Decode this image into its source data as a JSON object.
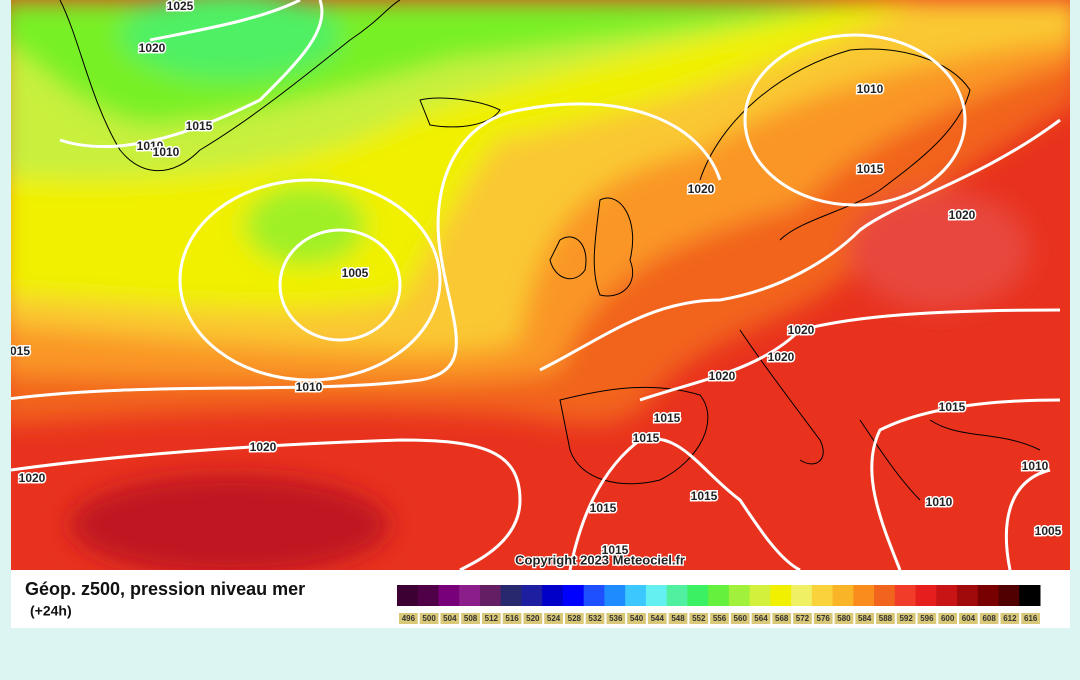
{
  "map": {
    "isobar_labels": [
      "1025",
      "1020",
      "1015",
      "1010",
      "1010",
      "1005",
      "1010",
      "1020",
      "1020",
      "015",
      "1010",
      "1015",
      "1020",
      "1020",
      "1020",
      "1020",
      "1020",
      "1015",
      "1015",
      "1015",
      "1015",
      "1015",
      "1010",
      "1010",
      "1005",
      "1015"
    ],
    "copyright": "Copyright 2023 Meteociel.fr"
  },
  "legend": {
    "title": "Géop. z500, pression niveau mer",
    "subtitle": "(+24h)",
    "items": [
      {
        "label": "496",
        "color": "#3c0032"
      },
      {
        "label": "500",
        "color": "#500046"
      },
      {
        "label": "504",
        "color": "#780078"
      },
      {
        "label": "508",
        "color": "#8c1e8c"
      },
      {
        "label": "512",
        "color": "#641e64"
      },
      {
        "label": "516",
        "color": "#28286e"
      },
      {
        "label": "520",
        "color": "#1e1ea0"
      },
      {
        "label": "524",
        "color": "#0000c8"
      },
      {
        "label": "528",
        "color": "#0000ff"
      },
      {
        "label": "532",
        "color": "#1e50ff"
      },
      {
        "label": "536",
        "color": "#1e8cff"
      },
      {
        "label": "540",
        "color": "#3cc8ff"
      },
      {
        "label": "544",
        "color": "#64f0f0"
      },
      {
        "label": "548",
        "color": "#50f0a0"
      },
      {
        "label": "552",
        "color": "#3cf064"
      },
      {
        "label": "556",
        "color": "#64f03c"
      },
      {
        "label": "560",
        "color": "#a0f03c"
      },
      {
        "label": "564",
        "color": "#d2f03c"
      },
      {
        "label": "568",
        "color": "#f0f000"
      },
      {
        "label": "572",
        "color": "#f0f064"
      },
      {
        "label": "576",
        "color": "#fad23c"
      },
      {
        "label": "580",
        "color": "#fab428"
      },
      {
        "label": "584",
        "color": "#fa8c1e"
      },
      {
        "label": "588",
        "color": "#f0641e"
      },
      {
        "label": "592",
        "color": "#f03c28"
      },
      {
        "label": "596",
        "color": "#e61e1e"
      },
      {
        "label": "600",
        "color": "#c81414"
      },
      {
        "label": "604",
        "color": "#a00a0a"
      },
      {
        "label": "608",
        "color": "#780000"
      },
      {
        "label": "612",
        "color": "#500000"
      },
      {
        "label": "616",
        "color": "#000000"
      }
    ]
  }
}
